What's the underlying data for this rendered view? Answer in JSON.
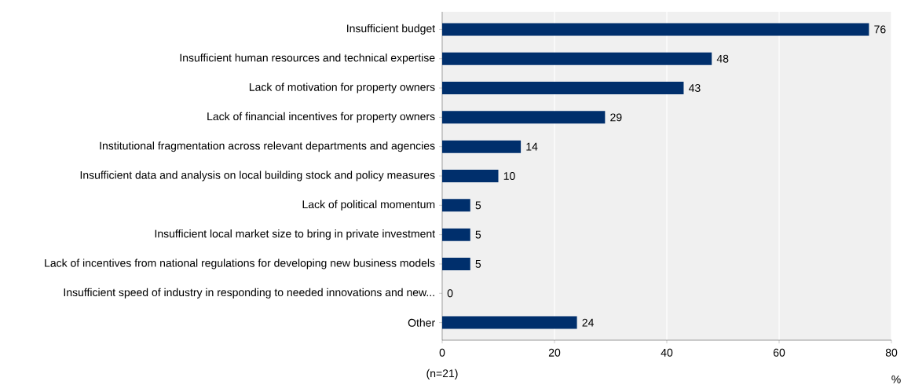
{
  "chart_data": {
    "type": "bar",
    "orientation": "horizontal",
    "categories": [
      "Insufficient budget",
      "Insufficient human resources and technical expertise",
      "Lack of motivation for property owners",
      "Lack of financial incentives for property owners",
      "Institutional fragmentation across relevant departments and agencies",
      "Insufficient data and analysis on local building stock and policy measures",
      "Lack of political momentum",
      "Insufficient local market size to bring in private investment",
      "Lack of incentives from national regulations for developing new business models",
      "Insufficient speed of industry in responding to needed innovations and new...",
      "Other"
    ],
    "values": [
      76,
      48,
      43,
      29,
      14,
      10,
      5,
      5,
      5,
      0,
      24
    ],
    "color": "#002f6c",
    "xlim": [
      0,
      80
    ],
    "xticks": [
      0,
      20,
      40,
      60,
      80
    ],
    "grid": "x",
    "data_labels": true,
    "xlabel": "%",
    "annotations": [
      "(n=21)"
    ]
  }
}
